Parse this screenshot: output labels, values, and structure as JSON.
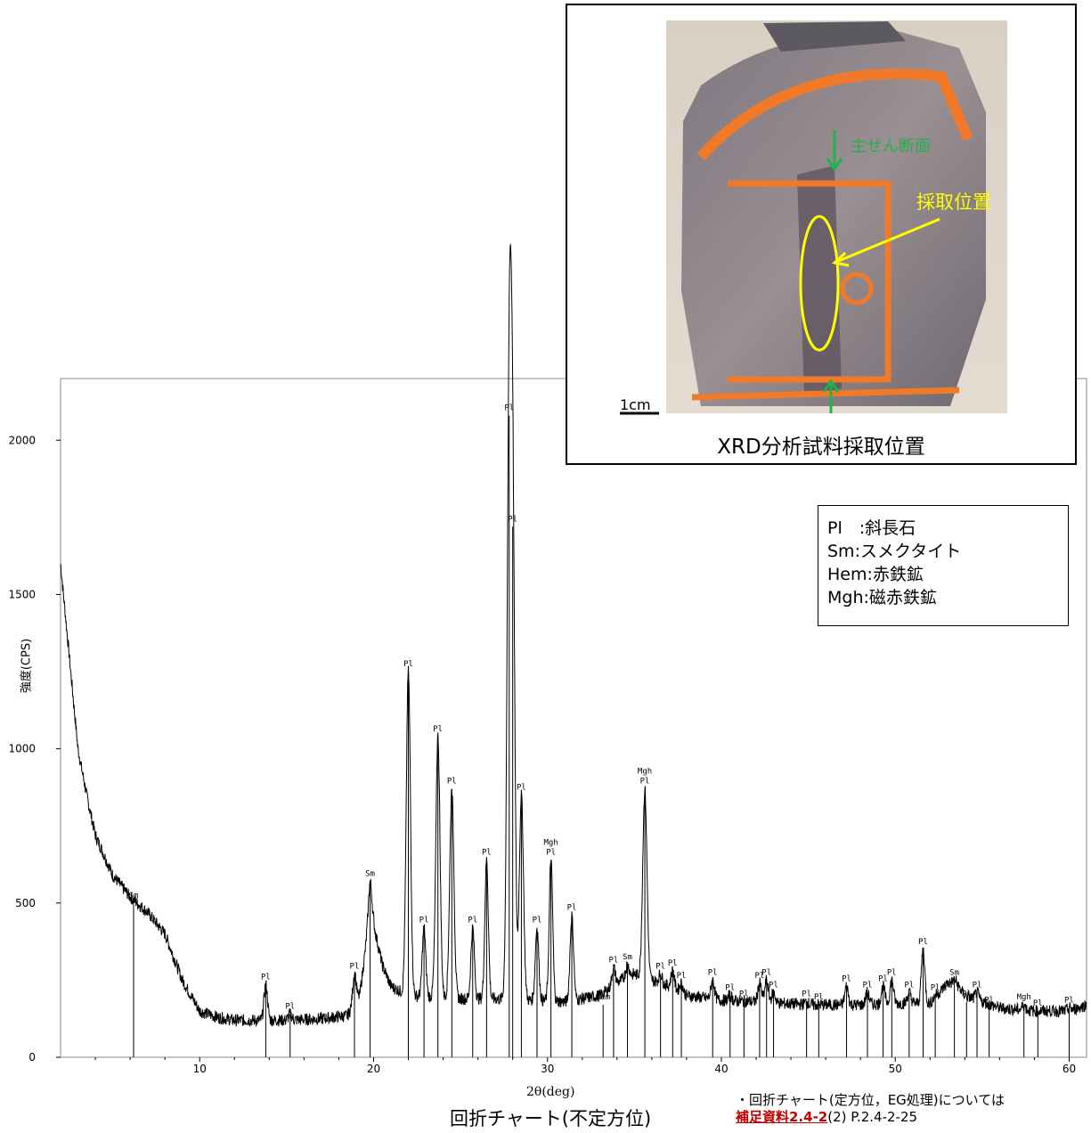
{
  "photo": {
    "labels": {
      "cross_section": "主せん断面",
      "sampling_position": "採取位置",
      "scale_bar": "1cm"
    },
    "caption": "XRD分析試料採取位置"
  },
  "legend": {
    "items": [
      {
        "abbr": "Pl",
        "sep": "　:",
        "mineral": "斜長石"
      },
      {
        "abbr": "Sm",
        "sep": ":",
        "mineral": "スメクタイト"
      },
      {
        "abbr": "Hem",
        "sep": ":",
        "mineral": "赤鉄鉱"
      },
      {
        "abbr": "Mgh",
        "sep": ":",
        "mineral": "磁赤鉄鉱"
      }
    ]
  },
  "chart_caption": "回折チャート(不定方位)",
  "note": {
    "line1": "・回折チャート(定方位，EG処理)については",
    "ref_link": "補足資料2.4-2",
    "ref_rest": "(2) P.2.4-2-25"
  },
  "chart_data": {
    "type": "line",
    "xlabel": "2θ(deg)",
    "ylabel": "強度(CPS)",
    "xlim": [
      2,
      61
    ],
    "ylim": [
      0,
      2200
    ],
    "xticks": [
      10,
      20,
      30,
      40,
      50,
      60
    ],
    "yticks": [
      0,
      500,
      1000,
      1500,
      2000
    ],
    "baseline_profile": [
      [
        2,
        1600
      ],
      [
        2.5,
        1300
      ],
      [
        3,
        1000
      ],
      [
        3.5,
        850
      ],
      [
        4,
        720
      ],
      [
        5,
        590
      ],
      [
        6,
        520
      ],
      [
        7,
        470
      ],
      [
        8,
        400
      ],
      [
        9,
        250
      ],
      [
        10,
        150
      ],
      [
        11,
        130
      ],
      [
        12,
        120
      ],
      [
        13,
        120
      ],
      [
        15,
        120
      ],
      [
        17,
        125
      ],
      [
        18.5,
        135
      ],
      [
        19.2,
        200
      ],
      [
        19.6,
        380
      ],
      [
        20,
        430
      ],
      [
        20.5,
        300
      ],
      [
        21,
        230
      ],
      [
        22,
        200
      ],
      [
        25,
        190
      ],
      [
        27,
        190
      ],
      [
        29,
        185
      ],
      [
        31,
        180
      ],
      [
        33,
        200
      ],
      [
        34.5,
        260
      ],
      [
        35,
        270
      ],
      [
        36,
        250
      ],
      [
        37,
        230
      ],
      [
        38,
        200
      ],
      [
        40,
        185
      ],
      [
        42,
        180
      ],
      [
        45,
        170
      ],
      [
        48,
        170
      ],
      [
        50,
        175
      ],
      [
        52,
        175
      ],
      [
        53,
        240
      ],
      [
        53.5,
        240
      ],
      [
        54,
        200
      ],
      [
        56,
        160
      ],
      [
        58,
        150
      ],
      [
        60,
        150
      ],
      [
        61,
        170
      ]
    ],
    "peaks": [
      {
        "x": 6.2,
        "height": 500,
        "labels": [
          "Sm"
        ]
      },
      {
        "x": 13.8,
        "height": 235,
        "labels": [
          "Pl"
        ]
      },
      {
        "x": 15.2,
        "height": 140,
        "labels": [
          "Pl"
        ]
      },
      {
        "x": 18.9,
        "height": 270,
        "labels": [
          "Pl"
        ]
      },
      {
        "x": 19.8,
        "height": 570,
        "labels": [
          "Sm"
        ]
      },
      {
        "x": 22.0,
        "height": 1250,
        "labels": [
          "Pl"
        ]
      },
      {
        "x": 22.9,
        "height": 420,
        "labels": [
          "Pl"
        ]
      },
      {
        "x": 23.7,
        "height": 1040,
        "labels": [
          "Pl"
        ]
      },
      {
        "x": 24.5,
        "height": 870,
        "labels": [
          "Pl"
        ]
      },
      {
        "x": 25.7,
        "height": 420,
        "labels": [
          "Pl"
        ]
      },
      {
        "x": 26.5,
        "height": 640,
        "labels": [
          "Pl"
        ]
      },
      {
        "x": 27.8,
        "height": 2080,
        "labels": [
          "Pl"
        ]
      },
      {
        "x": 28.0,
        "height": 1720,
        "labels": [
          "Pl"
        ]
      },
      {
        "x": 28.5,
        "height": 850,
        "labels": [
          "Pl"
        ]
      },
      {
        "x": 29.4,
        "height": 420,
        "labels": [
          "Pl"
        ]
      },
      {
        "x": 30.2,
        "height": 640,
        "labels": [
          "Mgh",
          "Pl"
        ]
      },
      {
        "x": 31.4,
        "height": 460,
        "labels": [
          "Pl"
        ]
      },
      {
        "x": 33.2,
        "height": 170,
        "labels": [
          "Hem"
        ]
      },
      {
        "x": 33.8,
        "height": 290,
        "labels": [
          "Pl"
        ]
      },
      {
        "x": 34.6,
        "height": 300,
        "labels": [
          "Sm"
        ]
      },
      {
        "x": 35.6,
        "height": 870,
        "labels": [
          "Mgh",
          "Pl"
        ]
      },
      {
        "x": 36.5,
        "height": 270,
        "labels": [
          "Pl"
        ]
      },
      {
        "x": 37.2,
        "height": 280,
        "labels": [
          "Pl"
        ]
      },
      {
        "x": 37.7,
        "height": 240,
        "labels": [
          "Pl"
        ]
      },
      {
        "x": 39.5,
        "height": 250,
        "labels": [
          "Pl"
        ]
      },
      {
        "x": 40.5,
        "height": 200,
        "labels": [
          "Pl"
        ]
      },
      {
        "x": 41.3,
        "height": 180,
        "labels": [
          "Pl"
        ]
      },
      {
        "x": 42.2,
        "height": 240,
        "labels": [
          "Pl"
        ]
      },
      {
        "x": 42.6,
        "height": 250,
        "labels": [
          "Pl"
        ]
      },
      {
        "x": 43.0,
        "height": 210,
        "labels": [
          "Pl"
        ]
      },
      {
        "x": 44.9,
        "height": 180,
        "labels": [
          "Pl"
        ]
      },
      {
        "x": 45.6,
        "height": 170,
        "labels": [
          "Pl"
        ]
      },
      {
        "x": 47.2,
        "height": 230,
        "labels": [
          "Pl"
        ]
      },
      {
        "x": 48.4,
        "height": 210,
        "labels": [
          "Pl"
        ]
      },
      {
        "x": 49.3,
        "height": 230,
        "labels": [
          "Pl"
        ]
      },
      {
        "x": 49.8,
        "height": 250,
        "labels": [
          "Pl"
        ]
      },
      {
        "x": 50.8,
        "height": 210,
        "labels": [
          "Pl"
        ]
      },
      {
        "x": 51.6,
        "height": 350,
        "labels": [
          "Pl"
        ]
      },
      {
        "x": 52.3,
        "height": 200,
        "labels": [
          "Pl"
        ]
      },
      {
        "x": 53.4,
        "height": 250,
        "labels": [
          "Sm"
        ]
      },
      {
        "x": 54.1,
        "height": 180,
        "labels": [
          "Pl"
        ]
      },
      {
        "x": 54.7,
        "height": 210,
        "labels": [
          "Pl"
        ]
      },
      {
        "x": 55.4,
        "height": 160,
        "labels": [
          "Pl"
        ]
      },
      {
        "x": 57.4,
        "height": 170,
        "labels": [
          "Mgh"
        ]
      },
      {
        "x": 58.2,
        "height": 150,
        "labels": [
          "Pl"
        ]
      },
      {
        "x": 60.0,
        "height": 160,
        "labels": [
          "Pl"
        ]
      }
    ]
  },
  "colors": {
    "trace": "#000000",
    "ellipse": "#ffff00",
    "orange_mark": "#f07a2a",
    "green_arrow": "#22b14c",
    "ref_link": "#c00000"
  }
}
